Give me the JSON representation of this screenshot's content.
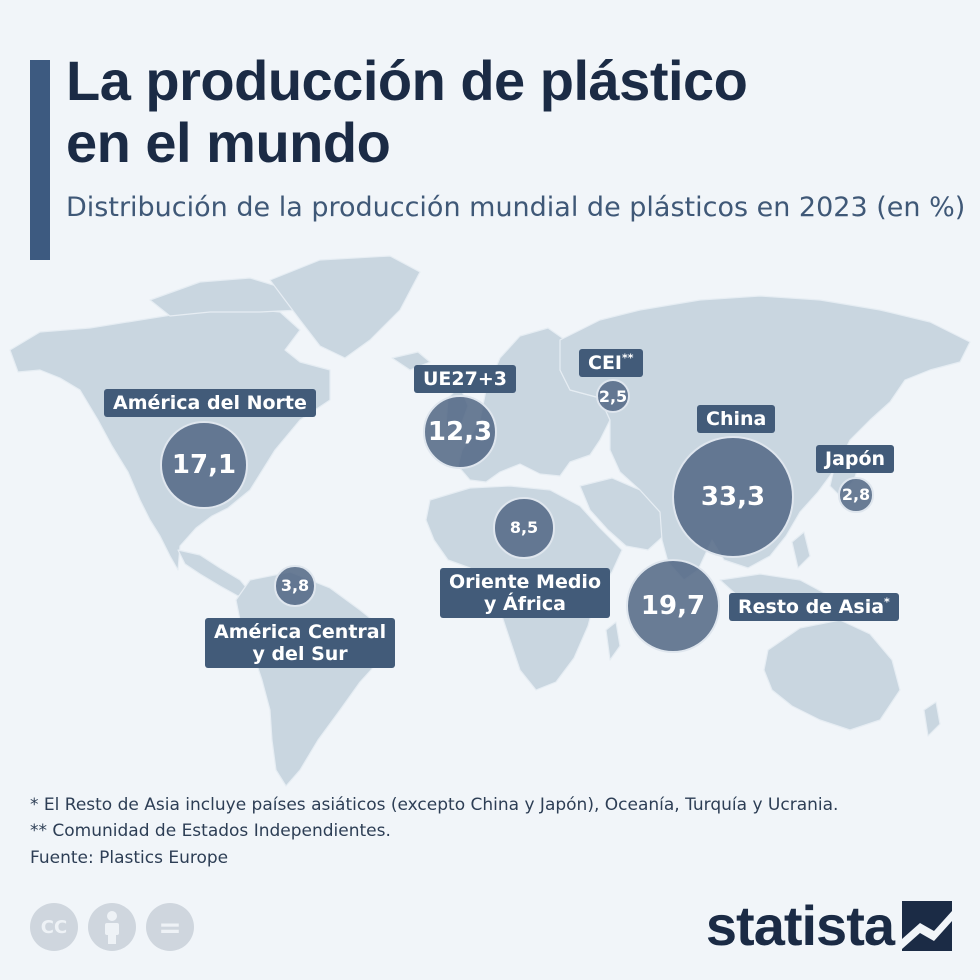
{
  "header": {
    "title_line1": "La producción de plástico",
    "title_line2": "en el mundo",
    "subtitle": "Distribución de la producción mundial de plásticos en 2023 (en %)"
  },
  "regions": {
    "north_america": {
      "label": "América del Norte",
      "value": "17,1"
    },
    "eu": {
      "label": "UE27+3",
      "value": "12,3"
    },
    "cis": {
      "label": "CEI",
      "mark": "**",
      "value": "2,5"
    },
    "china": {
      "label": "China",
      "value": "33,3"
    },
    "japan": {
      "label": "Japón",
      "value": "2,8"
    },
    "mea": {
      "label_line1": "Oriente Medio",
      "label_line2": "y África",
      "value": "8,5"
    },
    "rest_asia": {
      "label": "Resto de Asia",
      "mark": "*",
      "value": "19,7"
    },
    "latam": {
      "label_line1": "América Central",
      "label_line2": "y del Sur",
      "value": "3,8"
    }
  },
  "chart_data": {
    "type": "bubble-map",
    "title": "La producción de plástico en el mundo",
    "subtitle": "Distribución de la producción mundial de plásticos en 2023 (en %)",
    "unit": "%",
    "year": 2023,
    "values": [
      {
        "region": "América del Norte",
        "value": 17.1
      },
      {
        "region": "UE27+3",
        "value": 12.3
      },
      {
        "region": "CEI",
        "value": 2.5
      },
      {
        "region": "China",
        "value": 33.3
      },
      {
        "region": "Japón",
        "value": 2.8
      },
      {
        "region": "Oriente Medio y África",
        "value": 8.5
      },
      {
        "region": "Resto de Asia",
        "value": 19.7
      },
      {
        "region": "América Central y del Sur",
        "value": 3.8
      }
    ]
  },
  "footnotes": {
    "note1": "*   El Resto de Asia incluye países asiáticos (excepto China y Japón), Oceanía, Turquía y Ucrania.",
    "note2": "** Comunidad de Estados Independientes.",
    "source": "Fuente: Plastics Europe"
  },
  "license_icons": {
    "cc": "CC",
    "by": "BY",
    "nd": "="
  },
  "brand": {
    "name": "statista"
  },
  "colors": {
    "bubble": "#516684",
    "label": "#425b79",
    "land": "#c9d6e0",
    "title": "#1b2b45"
  }
}
